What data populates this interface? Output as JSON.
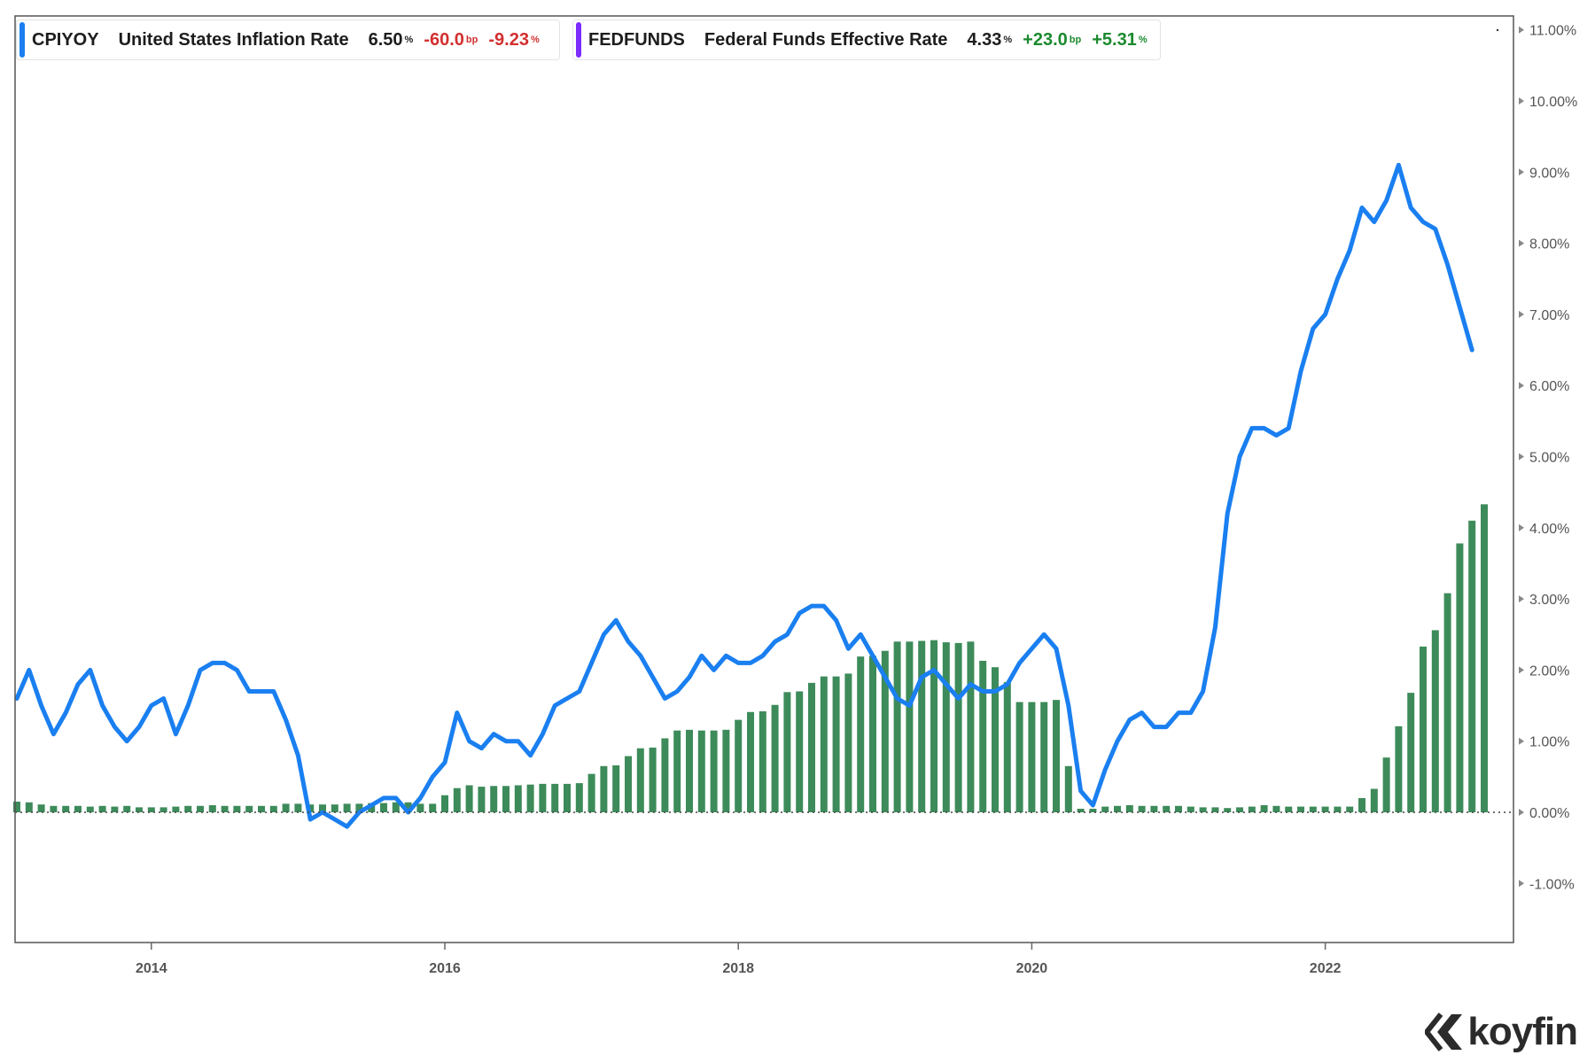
{
  "legend": [
    {
      "ticker": "CPIYOY",
      "name": "United States Inflation Rate",
      "value": "6.50",
      "unit": "%",
      "change_bp": "-60.0",
      "change_bp_unit": "bp",
      "change_pct": "-9.23",
      "change_pct_unit": "%",
      "color": "#1a7ff0",
      "change_color": "#d32f2f"
    },
    {
      "ticker": "FEDFUNDS",
      "name": "Federal Funds Effective Rate",
      "value": "4.33",
      "unit": "%",
      "change_bp": "+23.0",
      "change_bp_unit": "bp",
      "change_pct": "+5.31",
      "change_pct_unit": "%",
      "color": "#7b2cff",
      "change_color": "#1b8a2e"
    }
  ],
  "logo": {
    "text": "koyfin"
  },
  "colors": {
    "line": "#1a7ff0",
    "bars": "#3d8b5a",
    "axis": "#777777"
  },
  "chart_data": {
    "type": "line+bar",
    "x_start": "2013-02",
    "x_ticks": [
      "2014",
      "2016",
      "2018",
      "2020",
      "2022"
    ],
    "y_ticks": [
      "11.00%",
      "10.00%",
      "9.00%",
      "8.00%",
      "7.00%",
      "6.00%",
      "5.00%",
      "4.00%",
      "3.00%",
      "2.00%",
      "1.00%",
      "0.00%",
      "-1.00%"
    ],
    "ylim": [
      -1.8,
      11.2
    ],
    "series": [
      {
        "name": "CPIYOY",
        "type": "line",
        "values": [
          1.6,
          2.0,
          1.5,
          1.1,
          1.4,
          1.8,
          2.0,
          1.5,
          1.2,
          1.0,
          1.2,
          1.5,
          1.6,
          1.1,
          1.5,
          2.0,
          2.1,
          2.1,
          2.0,
          1.7,
          1.7,
          1.7,
          1.3,
          0.8,
          -0.1,
          0.0,
          -0.1,
          -0.2,
          0.0,
          0.1,
          0.2,
          0.2,
          0.0,
          0.2,
          0.5,
          0.7,
          1.4,
          1.0,
          0.9,
          1.1,
          1.0,
          1.0,
          0.8,
          1.1,
          1.5,
          1.6,
          1.7,
          2.1,
          2.5,
          2.7,
          2.4,
          2.2,
          1.9,
          1.6,
          1.7,
          1.9,
          2.2,
          2.0,
          2.2,
          2.1,
          2.1,
          2.2,
          2.4,
          2.5,
          2.8,
          2.9,
          2.9,
          2.7,
          2.3,
          2.5,
          2.2,
          1.9,
          1.6,
          1.5,
          1.9,
          2.0,
          1.8,
          1.6,
          1.8,
          1.7,
          1.7,
          1.8,
          2.1,
          2.3,
          2.5,
          2.3,
          1.5,
          0.3,
          0.1,
          0.6,
          1.0,
          1.3,
          1.4,
          1.2,
          1.2,
          1.4,
          1.4,
          1.7,
          2.6,
          4.2,
          5.0,
          5.4,
          5.4,
          5.3,
          5.4,
          6.2,
          6.8,
          7.0,
          7.5,
          7.9,
          8.5,
          8.3,
          8.6,
          9.1,
          8.5,
          8.3,
          8.2,
          7.7,
          7.1,
          6.5
        ]
      },
      {
        "name": "FEDFUNDS",
        "type": "bar",
        "values": [
          0.15,
          0.14,
          0.11,
          0.09,
          0.09,
          0.09,
          0.08,
          0.09,
          0.08,
          0.09,
          0.07,
          0.07,
          0.07,
          0.08,
          0.09,
          0.09,
          0.1,
          0.09,
          0.09,
          0.09,
          0.09,
          0.09,
          0.12,
          0.12,
          0.11,
          0.11,
          0.11,
          0.12,
          0.12,
          0.13,
          0.13,
          0.14,
          0.14,
          0.12,
          0.12,
          0.24,
          0.34,
          0.38,
          0.36,
          0.37,
          0.37,
          0.38,
          0.39,
          0.4,
          0.4,
          0.4,
          0.41,
          0.54,
          0.65,
          0.66,
          0.79,
          0.9,
          0.91,
          1.04,
          1.15,
          1.16,
          1.15,
          1.15,
          1.16,
          1.3,
          1.41,
          1.42,
          1.51,
          1.69,
          1.7,
          1.82,
          1.91,
          1.91,
          1.95,
          2.19,
          2.2,
          2.27,
          2.4,
          2.4,
          2.41,
          2.42,
          2.39,
          2.38,
          2.4,
          2.13,
          2.04,
          1.83,
          1.55,
          1.55,
          1.55,
          1.58,
          0.65,
          0.05,
          0.05,
          0.08,
          0.09,
          0.1,
          0.09,
          0.09,
          0.09,
          0.09,
          0.08,
          0.07,
          0.07,
          0.06,
          0.07,
          0.08,
          0.1,
          0.09,
          0.08,
          0.08,
          0.08,
          0.08,
          0.08,
          0.08,
          0.2,
          0.33,
          0.77,
          1.21,
          1.68,
          2.33,
          2.56,
          3.08,
          3.78,
          4.1,
          4.33
        ]
      }
    ]
  }
}
